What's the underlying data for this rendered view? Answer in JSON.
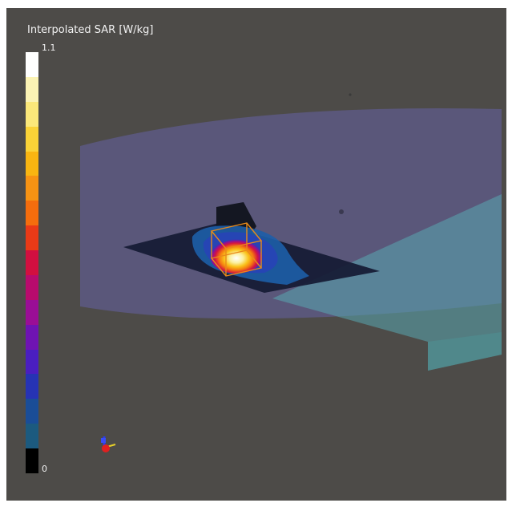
{
  "legend": {
    "title": "Interpolated SAR [W/kg]",
    "max_label": "1.1",
    "min_label": "0",
    "colors": [
      "#ffffff",
      "#fbf3b4",
      "#fbe87a",
      "#fad337",
      "#f9b511",
      "#f79313",
      "#f56d0d",
      "#ea3a17",
      "#d20f40",
      "#b80b6d",
      "#9a0e96",
      "#6f13b3",
      "#4a1ec0",
      "#2633b4",
      "#1a4d97",
      "#1c5a7f",
      "#000000"
    ]
  },
  "scene": {
    "background": "#4d4b48",
    "phantom_color": "#6a67b8",
    "slab_color": "#5aa8b0"
  }
}
